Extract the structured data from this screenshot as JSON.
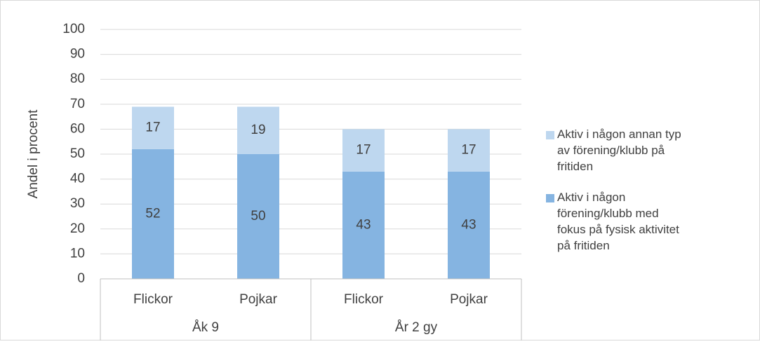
{
  "chart_data": {
    "type": "stacked_bar",
    "ylabel": "Andel i procent",
    "categories": [
      "Flickor",
      "Pojkar",
      "Flickor",
      "Pojkar"
    ],
    "groups": [
      "Åk 9",
      "År 2 gy"
    ],
    "series": [
      {
        "name": "Aktiv i någon förening/klubb med fokus på fysisk aktivitet på fritiden",
        "color": "#85b4e1",
        "values": [
          52,
          50,
          43,
          43
        ]
      },
      {
        "name": "Aktiv i någon annan typ av förening/klubb på fritiden",
        "color": "#bed7ef",
        "values": [
          17,
          19,
          17,
          17
        ]
      }
    ],
    "ylim": [
      0,
      100
    ],
    "yticks": [
      0,
      10,
      20,
      30,
      40,
      50,
      60,
      70,
      80,
      90,
      100
    ],
    "grid": true,
    "legend": "right"
  }
}
